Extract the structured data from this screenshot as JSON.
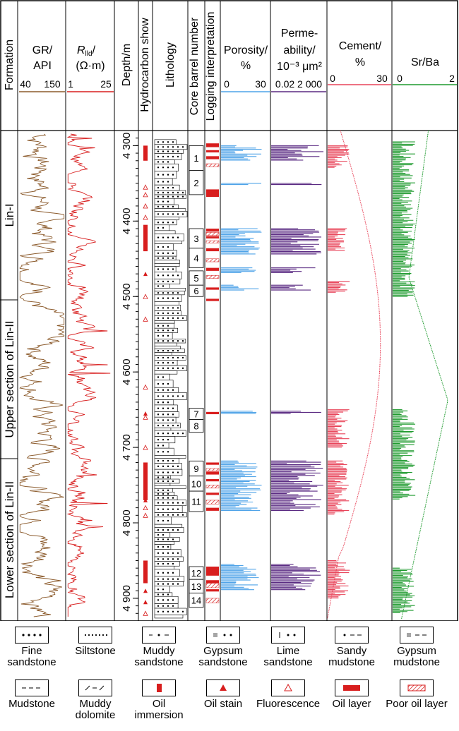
{
  "headers": {
    "formation": "Formation",
    "gr": "GR/",
    "gr_unit": "API",
    "gr_scale_min": "40",
    "gr_scale_max": "150",
    "rlld_main": "R",
    "rlld_sub": "lld",
    "rlld_tail": "/",
    "rlld_unit": "(Ω·m)",
    "rlld_scale_min": "1",
    "rlld_scale_max": "25",
    "depth": "Depth/m",
    "hc": "Hydrocarbon show",
    "lithology": "Lithology",
    "core": "Core barrel number",
    "interp": "Logging interpretation",
    "porosity": "Porosity/",
    "porosity_unit": "%",
    "porosity_min": "0",
    "porosity_max": "30",
    "perm1": "Perme-",
    "perm2": "ability/",
    "perm3": "10⁻³ μm²",
    "perm_scale": "0.02 2 000",
    "cement": "Cement/",
    "cement_unit": "%",
    "cement_min": "0",
    "cement_max": "30",
    "srba": "Sr/Ba",
    "srba_min": "0",
    "srba_max": "2"
  },
  "formations": [
    "Lin-I",
    "Upper section of Lin-II",
    "Lower section of Lin-II"
  ],
  "depth_ticks": [
    "4 300",
    "4 400",
    "4 500",
    "4 600",
    "4 700",
    "4 800",
    "4 900"
  ],
  "depth_range": [
    4280,
    4930
  ],
  "core_barrels": [
    {
      "n": "1",
      "top": 4300,
      "bot": 4333
    },
    {
      "n": "2",
      "top": 4333,
      "bot": 4365
    },
    {
      "n": "3",
      "top": 4410,
      "bot": 4436
    },
    {
      "n": "4",
      "top": 4436,
      "bot": 4462
    },
    {
      "n": "5",
      "top": 4466,
      "bot": 4485
    },
    {
      "n": "6",
      "top": 4485,
      "bot": 4500
    },
    {
      "n": "7",
      "top": 4648,
      "bot": 4663
    },
    {
      "n": "8",
      "top": 4663,
      "bot": 4680
    },
    {
      "n": "9",
      "top": 4718,
      "bot": 4738
    },
    {
      "n": "10",
      "top": 4738,
      "bot": 4758
    },
    {
      "n": "11",
      "top": 4758,
      "bot": 4785
    },
    {
      "n": "12",
      "top": 4858,
      "bot": 4875
    },
    {
      "n": "13",
      "top": 4875,
      "bot": 4893
    },
    {
      "n": "14",
      "top": 4893,
      "bot": 4912
    }
  ],
  "legend": [
    {
      "label": "Fine sandstone",
      "icon": "fine-sandstone"
    },
    {
      "label": "Siltstone",
      "icon": "siltstone"
    },
    {
      "label": "Muddy sandstone",
      "icon": "muddy-sandstone"
    },
    {
      "label": "Gypsum sandstone",
      "icon": "gypsum-sandstone"
    },
    {
      "label": "Lime sandstone",
      "icon": "lime-sandstone"
    },
    {
      "label": "Sandy mudstone",
      "icon": "sandy-mudstone"
    },
    {
      "label": "Gypsum mudstone",
      "icon": "gypsum-mudstone"
    },
    {
      "label": "Mudstone",
      "icon": "mudstone"
    },
    {
      "label": "Muddy dolomite",
      "icon": "muddy-dolomite"
    },
    {
      "label": "Oil immersion",
      "icon": "oil-immersion"
    },
    {
      "label": "Oil stain",
      "icon": "oil-stain"
    },
    {
      "label": "Fluorescence",
      "icon": "fluorescence"
    },
    {
      "label": "Oil layer",
      "icon": "oil-layer"
    },
    {
      "label": "Poor oil layer",
      "icon": "poor-oil-layer"
    }
  ],
  "colors": {
    "gr": "#8B5A2B",
    "rlld": "#D81E1E",
    "porosity": "#4FA3E8",
    "perm": "#5A2A82",
    "cement": "#E8445A",
    "srba": "#1E9A2E",
    "oil": "#D81E1E"
  },
  "oil_layers": [
    [
      4297,
      4302
    ],
    [
      4306,
      4309
    ],
    [
      4314,
      4318
    ],
    [
      4358,
      4368
    ],
    [
      4410,
      4414
    ],
    [
      4420,
      4423
    ],
    [
      4436,
      4440
    ],
    [
      4462,
      4466
    ],
    [
      4488,
      4491
    ],
    [
      4503,
      4506
    ],
    [
      4653,
      4656
    ],
    [
      4720,
      4723
    ],
    [
      4732,
      4736
    ],
    [
      4742,
      4745
    ],
    [
      4760,
      4763
    ],
    [
      4780,
      4784
    ],
    [
      4858,
      4870
    ],
    [
      4876,
      4880
    ],
    [
      4888,
      4891
    ]
  ],
  "poor_oil_layers": [
    [
      4324,
      4328
    ],
    [
      4415,
      4419
    ],
    [
      4426,
      4429
    ],
    [
      4450,
      4454
    ],
    [
      4472,
      4476
    ],
    [
      4728,
      4731
    ],
    [
      4750,
      4754
    ],
    [
      4770,
      4775
    ],
    [
      4880,
      4886
    ],
    [
      4900,
      4906
    ]
  ]
}
